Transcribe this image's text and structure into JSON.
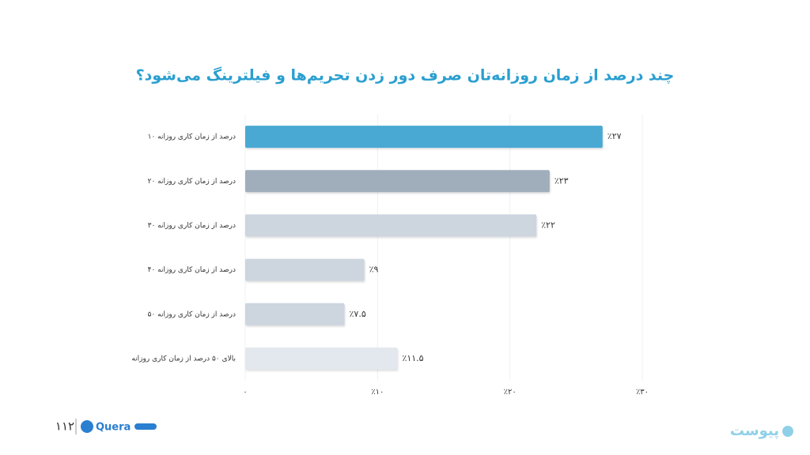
{
  "chart_data": {
    "type": "hbar",
    "title": "چند درصد از زمان روزانه‌تان صرف دور زدن تحریم‌ها و فیلترینگ می‌شود؟",
    "categories": [
      "۱۰ درصد از زمان کاری روزانه",
      "۲۰ درصد از زمان کاری روزانه",
      "۳۰ درصد از زمان کاری روزانه",
      "۴۰ درصد از زمان کاری روزانه",
      "۵۰ درصد از زمان کاری روزانه",
      "بالای ۵۰ درصد از زمان کاری روزانه"
    ],
    "values": [
      27,
      23,
      22,
      9,
      7.5,
      11.5
    ],
    "value_labels": [
      "٪۲۷",
      "٪۲۳",
      "٪۲۲",
      "٪۹",
      "٪۷.۵",
      "٪۱۱.۵"
    ],
    "colors": [
      "#4aa9d3",
      "#a0adbb",
      "#cdd5df",
      "#cdd5df",
      "#cdd5df",
      "#e3e7ee"
    ],
    "xlim": [
      0,
      30
    ],
    "xticks": [
      {
        "value": 0,
        "label": "۰"
      },
      {
        "value": 10,
        "label": "٪۱۰"
      },
      {
        "value": 20,
        "label": "٪۲۰"
      },
      {
        "value": 30,
        "label": "٪۳۰"
      }
    ],
    "grid": true
  },
  "footer": {
    "page": "۱۱۲",
    "brand": "Quera",
    "publisher": "پیوست"
  }
}
